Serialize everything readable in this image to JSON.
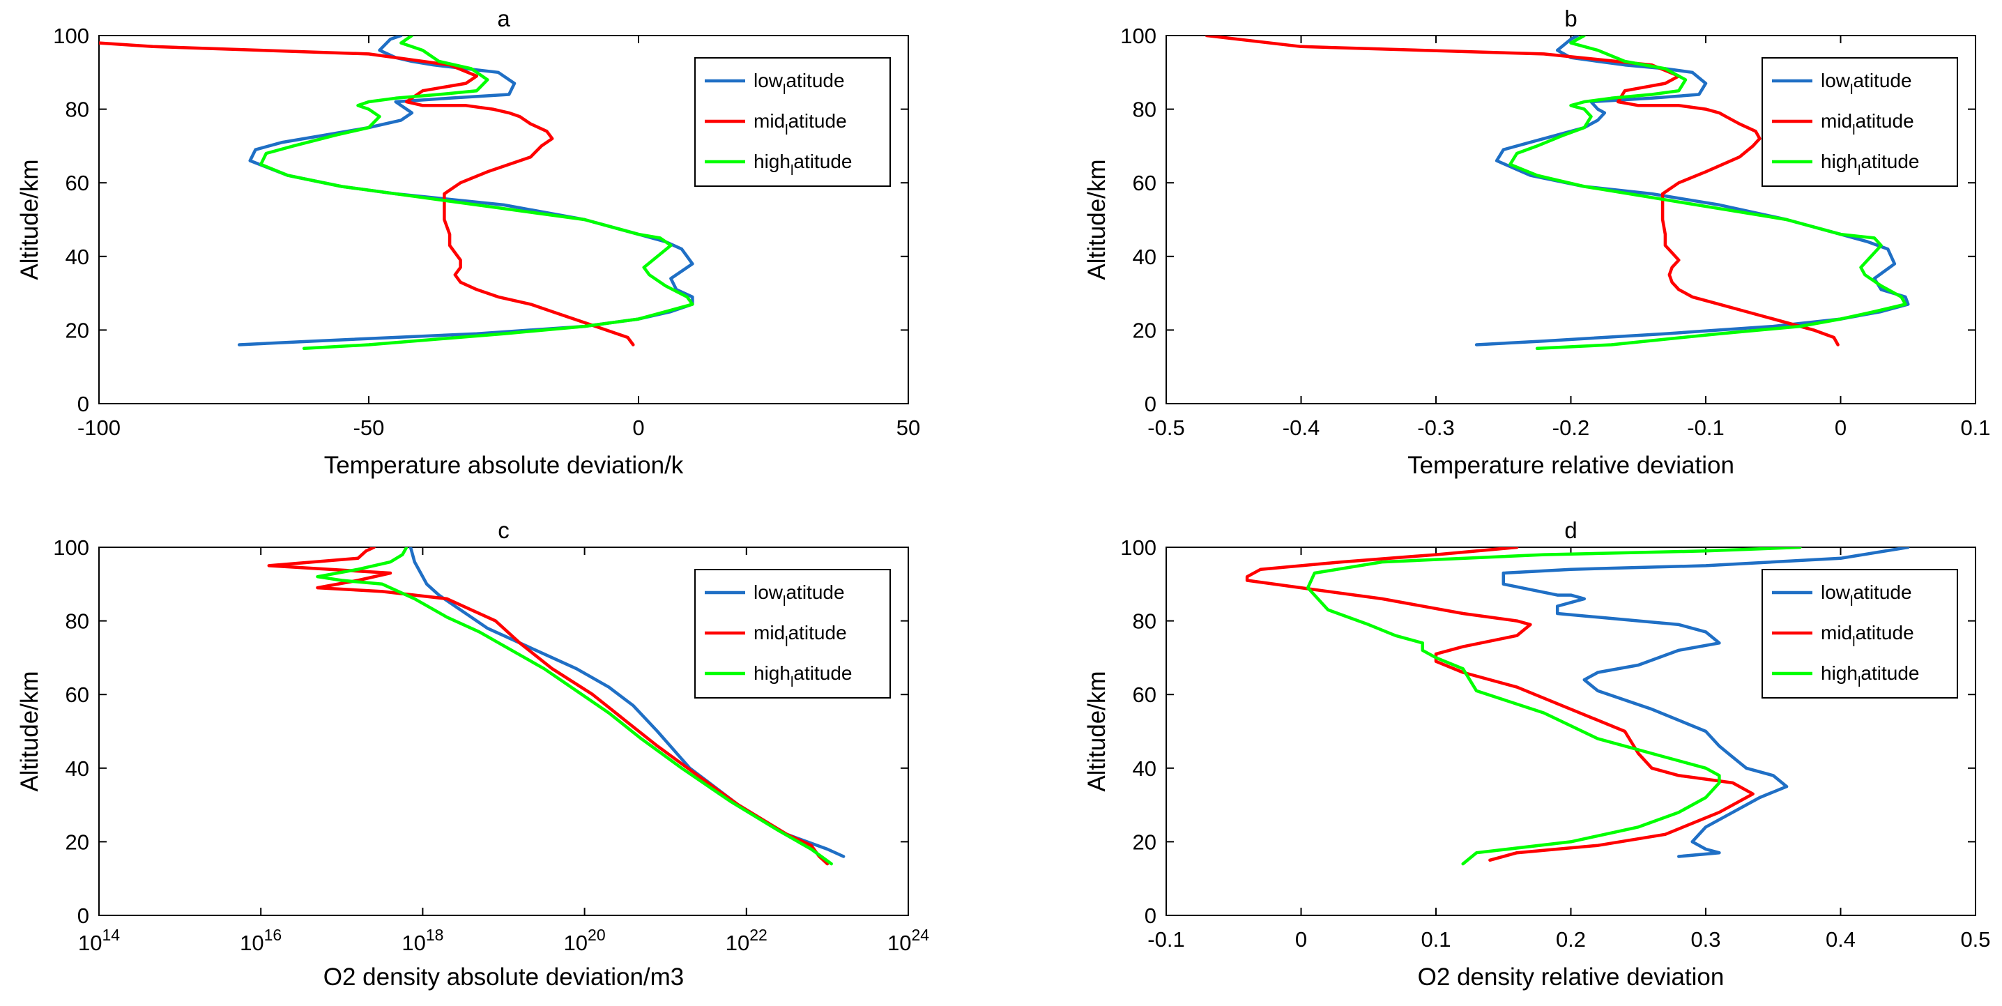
{
  "figure": {
    "background": "#ffffff"
  },
  "colors": {
    "low": "#1f6fc5",
    "mid": "#ff0000",
    "high": "#00ff00",
    "axis": "#000000"
  },
  "legend_labels": [
    {
      "pre": "low",
      "sub": "l",
      "post": "atitude",
      "series": "low"
    },
    {
      "pre": "mid",
      "sub": "l",
      "post": "atitude",
      "series": "mid"
    },
    {
      "pre": "high",
      "sub": "l",
      "post": "atitude",
      "series": "high"
    }
  ],
  "chart_data": [
    {
      "type": "line",
      "title": "a",
      "xlabel": "Temperature absolute deviation/k",
      "ylabel": "Altitude/km",
      "xlim": [
        -100,
        50
      ],
      "ylim": [
        0,
        100
      ],
      "xscale": "linear",
      "xticks": [
        -100,
        -50,
        0,
        50
      ],
      "xticklabels": [
        "-100",
        "-50",
        "0",
        "50"
      ],
      "yticks": [
        0,
        20,
        40,
        60,
        80,
        100
      ],
      "yticklabels": [
        "0",
        "20",
        "40",
        "60",
        "80",
        "100"
      ],
      "legend": "top-right",
      "series": [
        {
          "name": "low",
          "x": [
            -74,
            -60,
            -30,
            -10,
            0,
            6,
            10,
            10,
            7,
            6,
            10,
            8,
            5,
            0,
            -10,
            -25,
            -45,
            -55,
            -65,
            -72,
            -71,
            -66,
            -58,
            -50,
            -44,
            -42,
            -43,
            -45,
            -35,
            -24,
            -23,
            -26,
            -32,
            -38,
            -42,
            -45,
            -48,
            -46,
            -44
          ],
          "y": [
            16,
            17,
            19,
            21,
            23,
            25,
            27,
            29,
            31,
            34,
            38,
            42,
            44,
            46,
            50,
            54,
            57,
            59,
            62,
            66,
            69,
            71,
            73,
            75,
            77,
            79,
            80,
            82,
            83,
            84,
            87,
            90,
            91,
            92,
            93,
            94,
            96,
            99,
            100
          ]
        },
        {
          "name": "mid",
          "x": [
            -1,
            -2,
            -6,
            -10,
            -16,
            -20,
            -26,
            -30,
            -33,
            -34,
            -33,
            -33,
            -34,
            -35,
            -35,
            -36,
            -36,
            -33,
            -28,
            -20,
            -18,
            -16,
            -17,
            -20,
            -22,
            -24,
            -27,
            -32,
            -40,
            -43,
            -40,
            -32,
            -30,
            -35,
            -50,
            -90,
            -100
          ],
          "y": [
            16,
            18,
            20,
            22,
            25,
            27,
            29,
            31,
            33,
            35,
            37,
            39,
            41,
            43,
            46,
            50,
            57,
            60,
            63,
            67,
            70,
            72,
            74,
            76,
            78,
            79,
            80,
            81,
            81,
            82,
            85,
            87,
            89,
            92,
            95,
            97,
            98
          ]
        },
        {
          "name": "high",
          "x": [
            -62,
            -50,
            -25,
            -10,
            0,
            5,
            10,
            9,
            5,
            2,
            1,
            6,
            4,
            0,
            -10,
            -25,
            -40,
            -55,
            -65,
            -70,
            -69,
            -64,
            -56,
            -50,
            -48,
            -50,
            -52,
            -50,
            -45,
            -37,
            -30,
            -28,
            -31,
            -37,
            -40,
            -44,
            -42
          ],
          "y": [
            15,
            16,
            19,
            21,
            23,
            25,
            27,
            29,
            32,
            35,
            37,
            43,
            45,
            46,
            50,
            53,
            56,
            59,
            62,
            65,
            68,
            70,
            73,
            75,
            78,
            80,
            81,
            82,
            83,
            84,
            85,
            88,
            91,
            93,
            96,
            98,
            100
          ]
        }
      ]
    },
    {
      "type": "line",
      "title": "b",
      "xlabel": "Temperature relative deviation",
      "ylabel": "Altitude/km",
      "xlim": [
        -0.5,
        0.1
      ],
      "ylim": [
        0,
        100
      ],
      "xscale": "linear",
      "xticks": [
        -0.5,
        -0.4,
        -0.3,
        -0.2,
        -0.1,
        0,
        0.1
      ],
      "xticklabels": [
        "-0.5",
        "-0.4",
        "-0.3",
        "-0.2",
        "-0.1",
        "0",
        "0.1"
      ],
      "yticks": [
        0,
        20,
        40,
        60,
        80,
        100
      ],
      "yticklabels": [
        "0",
        "20",
        "40",
        "60",
        "80",
        "100"
      ],
      "legend": "top-right",
      "series": [
        {
          "name": "low",
          "x": [
            -0.27,
            -0.22,
            -0.13,
            -0.05,
            0,
            0.03,
            0.05,
            0.048,
            0.03,
            0.025,
            0.04,
            0.035,
            0.02,
            0,
            -0.04,
            -0.09,
            -0.14,
            -0.19,
            -0.23,
            -0.255,
            -0.25,
            -0.23,
            -0.21,
            -0.19,
            -0.18,
            -0.175,
            -0.18,
            -0.185,
            -0.14,
            -0.105,
            -0.1,
            -0.11,
            -0.13,
            -0.16,
            -0.18,
            -0.2,
            -0.21,
            -0.2,
            -0.195
          ],
          "y": [
            16,
            17,
            19,
            21,
            23,
            25,
            27,
            29,
            31,
            34,
            38,
            42,
            44,
            46,
            50,
            54,
            57,
            59,
            62,
            66,
            69,
            71,
            73,
            75,
            77,
            79,
            80,
            82,
            83,
            84,
            87,
            90,
            91,
            92,
            93,
            94,
            96,
            99,
            100
          ]
        },
        {
          "name": "mid",
          "x": [
            -0.002,
            -0.005,
            -0.02,
            -0.04,
            -0.07,
            -0.09,
            -0.11,
            -0.12,
            -0.125,
            -0.127,
            -0.125,
            -0.12,
            -0.125,
            -0.13,
            -0.13,
            -0.132,
            -0.132,
            -0.12,
            -0.1,
            -0.075,
            -0.065,
            -0.06,
            -0.063,
            -0.075,
            -0.085,
            -0.09,
            -0.1,
            -0.12,
            -0.15,
            -0.165,
            -0.16,
            -0.13,
            -0.12,
            -0.14,
            -0.22,
            -0.4,
            -0.47
          ],
          "y": [
            16,
            18,
            20,
            22,
            25,
            27,
            29,
            31,
            33,
            35,
            37,
            39,
            41,
            43,
            46,
            50,
            57,
            60,
            63,
            67,
            70,
            72,
            74,
            76,
            78,
            79,
            80,
            81,
            81,
            82,
            85,
            87,
            89,
            92,
            95,
            97,
            100
          ]
        },
        {
          "name": "high",
          "x": [
            -0.225,
            -0.17,
            -0.09,
            -0.03,
            0,
            0.025,
            0.048,
            0.045,
            0.03,
            0.018,
            0.015,
            0.03,
            0.025,
            0,
            -0.04,
            -0.09,
            -0.14,
            -0.19,
            -0.225,
            -0.245,
            -0.24,
            -0.225,
            -0.205,
            -0.19,
            -0.185,
            -0.19,
            -0.2,
            -0.19,
            -0.17,
            -0.14,
            -0.12,
            -0.115,
            -0.13,
            -0.16,
            -0.18,
            -0.2,
            -0.19
          ],
          "y": [
            15,
            16,
            19,
            21,
            23,
            25,
            27,
            29,
            32,
            35,
            37,
            43,
            45,
            46,
            50,
            53,
            56,
            59,
            62,
            65,
            68,
            70,
            73,
            75,
            78,
            80,
            81,
            82,
            83,
            84,
            85,
            88,
            91,
            93,
            96,
            98,
            100
          ]
        }
      ]
    },
    {
      "type": "line",
      "title": "c",
      "xlabel": "O2 density absolute deviation/m3",
      "ylabel": "Altitude/km",
      "xlim": [
        14,
        24
      ],
      "ylim": [
        0,
        100
      ],
      "xscale": "log10",
      "xticks": [
        14,
        16,
        18,
        20,
        22,
        24
      ],
      "xticklabels": [
        {
          "base": "10",
          "exp": "14"
        },
        {
          "base": "10",
          "exp": "16"
        },
        {
          "base": "10",
          "exp": "18"
        },
        {
          "base": "10",
          "exp": "20"
        },
        {
          "base": "10",
          "exp": "22"
        },
        {
          "base": "10",
          "exp": "24"
        }
      ],
      "yticks": [
        0,
        20,
        40,
        60,
        80,
        100
      ],
      "yticklabels": [
        "0",
        "20",
        "40",
        "60",
        "80",
        "100"
      ],
      "legend": "top-right",
      "series": [
        {
          "name": "low",
          "x": [
            23.2,
            23.0,
            22.5,
            21.9,
            21.3,
            20.9,
            20.6,
            20.3,
            19.9,
            19.4,
            19.0,
            18.8,
            18.6,
            18.4,
            18.2,
            18.05,
            18.0,
            17.9,
            17.85
          ],
          "y": [
            16,
            18,
            22,
            30,
            40,
            50,
            57,
            62,
            67,
            72,
            76,
            78,
            81,
            84,
            87,
            90,
            92,
            96,
            100
          ]
        },
        {
          "name": "mid",
          "x": [
            23.0,
            22.9,
            22.8,
            22.5,
            21.9,
            21.4,
            20.9,
            20.5,
            20.1,
            19.6,
            19.2,
            18.9,
            18.3,
            17.5,
            16.7,
            17.2,
            17.6,
            16.1,
            17.2,
            17.3,
            17.4
          ],
          "y": [
            14,
            16,
            19,
            22,
            30,
            38,
            46,
            53,
            60,
            67,
            74,
            80,
            86,
            88,
            89,
            91,
            93,
            95,
            97,
            99,
            100
          ]
        },
        {
          "name": "high",
          "x": [
            23.05,
            22.8,
            22.4,
            21.8,
            21.2,
            20.7,
            20.3,
            19.9,
            19.5,
            19.1,
            18.7,
            18.3,
            17.9,
            17.5,
            17.0,
            16.7,
            17.2,
            17.6,
            17.75,
            17.8
          ],
          "y": [
            14,
            18,
            23,
            31,
            40,
            48,
            55,
            61,
            67,
            72,
            77,
            81,
            86,
            90,
            91,
            92,
            94,
            96,
            98,
            100
          ]
        }
      ]
    },
    {
      "type": "line",
      "title": "d",
      "xlabel": "O2 density relative deviation",
      "ylabel": "Altitude/km",
      "xlim": [
        -0.1,
        0.5
      ],
      "ylim": [
        0,
        100
      ],
      "xscale": "linear",
      "xticks": [
        -0.1,
        0,
        0.1,
        0.2,
        0.3,
        0.4,
        0.5
      ],
      "xticklabels": [
        "-0.1",
        "0",
        "0.1",
        "0.2",
        "0.3",
        "0.4",
        "0.5"
      ],
      "yticks": [
        0,
        20,
        40,
        60,
        80,
        100
      ],
      "yticklabels": [
        "0",
        "20",
        "40",
        "60",
        "80",
        "100"
      ],
      "legend": "top-right",
      "series": [
        {
          "name": "low",
          "x": [
            0.28,
            0.31,
            0.3,
            0.29,
            0.3,
            0.32,
            0.34,
            0.36,
            0.35,
            0.33,
            0.32,
            0.31,
            0.3,
            0.26,
            0.22,
            0.21,
            0.22,
            0.25,
            0.28,
            0.31,
            0.3,
            0.28,
            0.22,
            0.19,
            0.19,
            0.21,
            0.2,
            0.19,
            0.15,
            0.15,
            0.2,
            0.3,
            0.4,
            0.45
          ],
          "y": [
            16,
            17,
            18,
            20,
            24,
            28,
            32,
            35,
            38,
            40,
            43,
            46,
            50,
            56,
            61,
            64,
            66,
            68,
            72,
            74,
            77,
            79,
            81,
            82,
            84,
            86,
            87,
            87,
            90,
            93,
            94,
            95,
            97,
            100
          ]
        },
        {
          "name": "mid",
          "x": [
            0.14,
            0.16,
            0.22,
            0.27,
            0.31,
            0.335,
            0.32,
            0.28,
            0.26,
            0.25,
            0.24,
            0.2,
            0.16,
            0.12,
            0.1,
            0.1,
            0.12,
            0.16,
            0.17,
            0.16,
            0.12,
            0.06,
            0.0,
            -0.04,
            -0.04,
            -0.03,
            0.03,
            0.1,
            0.16
          ],
          "y": [
            15,
            17,
            19,
            22,
            28,
            33,
            36,
            38,
            40,
            44,
            50,
            56,
            62,
            66,
            69,
            71,
            73,
            76,
            79,
            80,
            82,
            86,
            89,
            91,
            92,
            94,
            96,
            98,
            100
          ]
        },
        {
          "name": "high",
          "x": [
            0.12,
            0.13,
            0.2,
            0.25,
            0.28,
            0.3,
            0.31,
            0.31,
            0.3,
            0.27,
            0.22,
            0.18,
            0.13,
            0.125,
            0.12,
            0.1,
            0.09,
            0.09,
            0.07,
            0.05,
            0.02,
            0.005,
            0.01,
            0.06,
            0.18,
            0.3,
            0.37
          ],
          "y": [
            14,
            17,
            20,
            24,
            28,
            32,
            36,
            38,
            40,
            43,
            48,
            55,
            61,
            64,
            67,
            70,
            72,
            74,
            76,
            79,
            83,
            89,
            93,
            96,
            98,
            99,
            100
          ]
        }
      ]
    }
  ]
}
